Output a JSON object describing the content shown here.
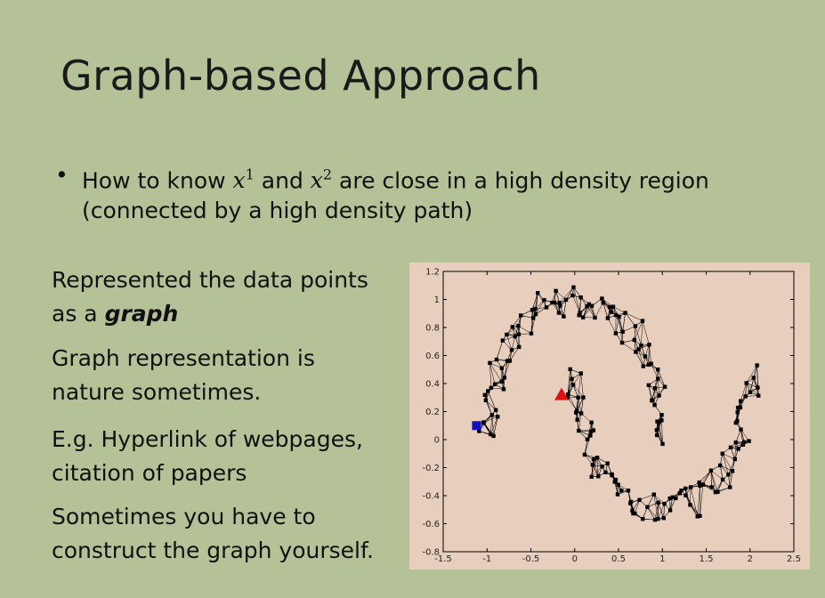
{
  "slide": {
    "title": "Graph-based Approach",
    "bullet": {
      "marker": "•",
      "prefix": "How to know ",
      "var1": "x",
      "sup1": "1",
      "mid": " and ",
      "var2": "x",
      "sup2": "2",
      "suffix": " are close in a high density region (connected by a high density path)"
    },
    "left_text": {
      "p1_line1": "Represented the data points",
      "p1_line2_prefix": "as a ",
      "p1_line2_emph": "graph",
      "p2_line1": "Graph representation is",
      "p2_line2": "nature sometimes.",
      "p3_line1": "E.g. Hyperlink of webpages,",
      "p3_line2": "citation of papers",
      "p4_line1": "Sometimes you have to",
      "p4_line2": "construct the graph yourself."
    }
  },
  "chart_data": {
    "type": "scatter",
    "title": "",
    "xlabel": "",
    "ylabel": "",
    "xlim": [
      -1.5,
      2.5
    ],
    "ylim": [
      -0.8,
      1.2
    ],
    "x_ticks": [
      "-1.5",
      "-1",
      "-0.5",
      "0",
      "0.5",
      "1",
      "1.5",
      "2",
      "2.5"
    ],
    "y_ticks": [
      "1.2",
      "1",
      "0.8",
      "0.6",
      "0.4",
      "0.2",
      "0",
      "-0.2",
      "-0.4",
      "-0.6",
      "-0.8"
    ],
    "grid": false,
    "legend": "none",
    "colors": {
      "points": "#000000",
      "edges": "#000000",
      "square": "#1010c0",
      "triangle": "#e01010",
      "background": "#e8cebd"
    },
    "moon_upper": {
      "center": [
        0.0,
        0.0
      ],
      "radius": 1.0,
      "theta_deg": [
        0,
        180
      ]
    },
    "moon_lower": {
      "center": [
        1.0,
        0.5
      ],
      "radius": 1.0,
      "theta_deg": [
        180,
        360
      ]
    },
    "marked_points": [
      {
        "shape": "square",
        "x": -1.12,
        "y": 0.1
      },
      {
        "shape": "triangle",
        "x": -0.15,
        "y": 0.32
      }
    ]
  }
}
